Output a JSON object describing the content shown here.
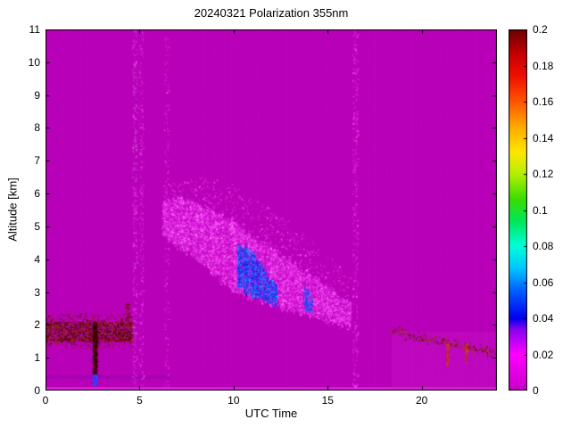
{
  "chart_data": {
    "type": "heatmap",
    "title": "20240321 Polarization 355nm",
    "xlabel": "UTC Time",
    "ylabel": "Altitude [km]",
    "x_range": [
      0,
      24
    ],
    "y_range": [
      0,
      11
    ],
    "x_ticks": [
      0,
      5,
      10,
      15,
      20
    ],
    "y_ticks": [
      0,
      1,
      2,
      3,
      4,
      5,
      6,
      7,
      8,
      9,
      10,
      11
    ],
    "background_color": "#b800b8",
    "noise_colors": [
      "#c40ac4",
      "#ae00ae",
      "#d012d0",
      "#b806b8",
      "#cc00cc"
    ],
    "colorbar": {
      "min": 0,
      "max": 0.2,
      "tick_values": [
        0,
        0.02,
        0.04,
        0.06,
        0.08,
        0.1,
        0.12,
        0.14,
        0.16,
        0.18,
        0.2
      ],
      "tick_labels": [
        "0",
        "0.02",
        "0.04",
        "0.06",
        "0.08",
        "0.1",
        "0.12",
        "0.14",
        "0.16",
        "0.18",
        "0.2"
      ],
      "stops": [
        [
          0,
          "#c800c8"
        ],
        [
          0.1,
          "#ff00ff"
        ],
        [
          0.17,
          "#8800ee"
        ],
        [
          0.2,
          "#0000f0"
        ],
        [
          0.28,
          "#0064ff"
        ],
        [
          0.34,
          "#00c8ff"
        ],
        [
          0.4,
          "#00ffd9"
        ],
        [
          0.47,
          "#00e65a"
        ],
        [
          0.53,
          "#3cdc00"
        ],
        [
          0.6,
          "#b4f000"
        ],
        [
          0.66,
          "#ffe600"
        ],
        [
          0.73,
          "#ffaa00"
        ],
        [
          0.8,
          "#ff5500"
        ],
        [
          0.87,
          "#f01000"
        ],
        [
          0.93,
          "#c80000"
        ],
        [
          1,
          "#690000"
        ]
      ]
    },
    "features": [
      {
        "name": "surface-bright-strip",
        "type": "fill",
        "t": [
          0,
          24
        ],
        "alt": [
          0,
          0.1
        ],
        "color": "#ff50ff",
        "alpha": 0.5
      },
      {
        "name": "low-level-line",
        "type": "fill",
        "t": [
          0,
          6.6
        ],
        "alt": [
          0.36,
          0.46
        ],
        "color": "#7700aa",
        "alpha": 0.3
      },
      {
        "name": "evening-lowlevel-tinge",
        "type": "fill",
        "t": [
          18.4,
          24
        ],
        "alt": [
          0,
          1.8
        ],
        "color": "#d01ad0",
        "alpha": 0.25
      },
      {
        "name": "ground-aerosol-core",
        "type": "speckle",
        "t": [
          0,
          4.6
        ],
        "alt": [
          1.5,
          2.1
        ],
        "colors": [
          "#4a0000",
          "#7a1200",
          "#a33c00",
          "#1a0000",
          "#c1009c"
        ],
        "density": 1.1
      },
      {
        "name": "ground-aerosol-fringe",
        "type": "speckle",
        "t": [
          0,
          4.6
        ],
        "alt": [
          1.3,
          2.35
        ],
        "colors": [
          "#5a0a00",
          "#8a2000",
          "#d400d4"
        ],
        "density": 0.22
      },
      {
        "name": "ground-aerosol-spike",
        "type": "speckle",
        "t": [
          4.25,
          4.45
        ],
        "alt": [
          2.1,
          2.75
        ],
        "colors": [
          "#5a0a00",
          "#8a2000"
        ],
        "density": 0.5
      },
      {
        "name": "calibration-streak-dark",
        "type": "speckle",
        "t": [
          2.5,
          2.72
        ],
        "alt": [
          0.5,
          2.1
        ],
        "colors": [
          "#3c0000",
          "#6a0d00",
          "#150000"
        ],
        "density": 2.2
      },
      {
        "name": "calibration-streak-blue",
        "type": "speckle",
        "t": [
          2.5,
          2.72
        ],
        "alt": [
          0.18,
          0.5
        ],
        "colors": [
          "#1a30ff",
          "#0050ff",
          "#4060ff"
        ],
        "density": 2.0
      },
      {
        "name": "noise-stripe-1",
        "type": "speckle",
        "t": [
          4.6,
          4.85
        ],
        "alt": [
          0,
          11
        ],
        "colors": [
          "#ff44ff",
          "#e020e0",
          "#cc66cc"
        ],
        "density": 0.16
      },
      {
        "name": "noise-stripe-2",
        "type": "speckle",
        "t": [
          4.95,
          5.2
        ],
        "alt": [
          0,
          11
        ],
        "colors": [
          "#ff44ff",
          "#e020e0"
        ],
        "density": 0.12
      },
      {
        "name": "noise-stripe-3",
        "type": "speckle",
        "t": [
          6.3,
          6.55
        ],
        "alt": [
          0,
          11
        ],
        "colors": [
          "#ff44ff",
          "#d818d8"
        ],
        "density": 0.1
      },
      {
        "name": "noise-stripe-4",
        "type": "speckle",
        "t": [
          16.3,
          16.6
        ],
        "alt": [
          0,
          11
        ],
        "colors": [
          "#ff44ff",
          "#e020e0"
        ],
        "density": 0.14
      },
      {
        "name": "cloud-band",
        "type": "descent",
        "fill_alpha": 0.16,
        "cols": [
          [
            6.2,
            4.7,
            5.7
          ],
          [
            7,
            4.4,
            5.9
          ],
          [
            8,
            4.0,
            5.7
          ],
          [
            9,
            3.5,
            5.4
          ],
          [
            10,
            3.0,
            5.1
          ],
          [
            11,
            2.8,
            4.7
          ],
          [
            12,
            2.6,
            4.35
          ],
          [
            13,
            2.45,
            3.95
          ],
          [
            14,
            2.3,
            3.55
          ],
          [
            15,
            2.1,
            3.15
          ],
          [
            16.2,
            1.95,
            2.6
          ]
        ],
        "colors": [
          "#ff4dff",
          "#f22ef2",
          "#ff80ff",
          "#e516e5"
        ],
        "density": 0.45
      },
      {
        "name": "cloud-halo",
        "type": "descent",
        "cols": [
          [
            6.2,
            5.5,
            6.4
          ],
          [
            8,
            5.3,
            6.5
          ],
          [
            10,
            4.8,
            6.2
          ],
          [
            12,
            4.2,
            5.5
          ],
          [
            14,
            3.4,
            4.6
          ],
          [
            16.2,
            2.5,
            3.4
          ]
        ],
        "colors": [
          "#e21ce2",
          "#ff4dff"
        ],
        "density": 0.06
      },
      {
        "name": "blue-depol-core",
        "type": "descent",
        "fill_alpha": 0.3,
        "cols": [
          [
            10.2,
            3.2,
            4.45
          ],
          [
            10.6,
            3.0,
            4.35
          ],
          [
            11,
            2.9,
            4.2
          ],
          [
            11.4,
            2.8,
            3.95
          ],
          [
            11.8,
            2.7,
            3.55
          ],
          [
            12.3,
            2.6,
            3.1
          ]
        ],
        "colors": [
          "#0026ff",
          "#0058ff",
          "#00a0ff",
          "#2b00d0",
          "#00c8ff"
        ],
        "density": 0.55
      },
      {
        "name": "blue-depol-streak",
        "type": "descent",
        "fill_alpha": 0.2,
        "cols": [
          [
            13.7,
            2.45,
            3.25
          ],
          [
            14.15,
            2.35,
            2.95
          ]
        ],
        "colors": [
          "#0040ff",
          "#0080ff"
        ],
        "density": 0.4
      },
      {
        "name": "evening-layer-line",
        "type": "descent",
        "cols": [
          [
            18.35,
            1.75,
            1.92
          ],
          [
            19.3,
            1.62,
            1.78
          ],
          [
            20.3,
            1.5,
            1.64
          ],
          [
            21.3,
            1.42,
            1.54
          ],
          [
            22.3,
            1.3,
            1.44
          ],
          [
            23.3,
            1.17,
            1.32
          ],
          [
            24,
            1.08,
            1.22
          ]
        ],
        "colors": [
          "#7a2400",
          "#a84400",
          "#511000"
        ],
        "density": 0.28
      },
      {
        "name": "evening-mark-1",
        "type": "speckle",
        "t": [
          21.28,
          21.42
        ],
        "alt": [
          0.78,
          1.5
        ],
        "colors": [
          "#b03000",
          "#d94a00"
        ],
        "density": 0.9
      },
      {
        "name": "evening-mark-2",
        "type": "speckle",
        "t": [
          22.28,
          22.42
        ],
        "alt": [
          0.82,
          1.45
        ],
        "colors": [
          "#b03000",
          "#d94a00"
        ],
        "density": 0.8
      }
    ]
  }
}
